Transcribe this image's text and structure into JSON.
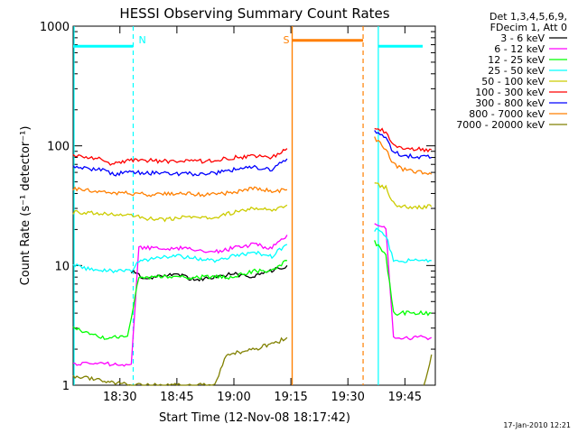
{
  "chart_data": {
    "type": "line",
    "title": "HESSI Observing Summary Count Rates",
    "xlabel": "Start Time (12-Nov-08 18:17:42)",
    "ylabel": "Count Rate (s⁻¹ detector⁻¹)",
    "y_scale": "log",
    "ylim": [
      1,
      1000
    ],
    "xlim": [
      "18:17:42",
      "19:53:00"
    ],
    "x_ticks": [
      "18:30",
      "18:45",
      "19:00",
      "19:15",
      "19:30",
      "19:45"
    ],
    "y_ticks": [
      "1",
      "10",
      "100",
      "1000"
    ],
    "grid": false,
    "legend_position": "right",
    "legend_header": [
      "Det 1,3,4,5,6,9,",
      "FDecim 1, Att 0"
    ],
    "markers": [
      {
        "label": "N",
        "type": "night_start",
        "time": "18:33:30",
        "color": "#00ffff"
      },
      {
        "label": "N",
        "type": "night_end",
        "time": "19:38:00",
        "color": "#00ffff"
      },
      {
        "label": "S",
        "type": "saa_start",
        "time": "19:15:20",
        "color": "#ff7f00"
      },
      {
        "label": "S",
        "type": "saa_end",
        "time": "19:34:00",
        "color": "#ff7f00"
      }
    ],
    "series": [
      {
        "name": "3 - 6 keV",
        "color": "#000000",
        "x": [
          "18:33",
          "18:36",
          "18:40",
          "18:45",
          "18:50",
          "18:55",
          "19:00",
          "19:05",
          "19:10",
          "19:14"
        ],
        "values": [
          9.0,
          8.0,
          8.0,
          8.5,
          7.5,
          8.0,
          8.5,
          8.0,
          9.0,
          10.0
        ]
      },
      {
        "name": "6 - 12 keV",
        "color": "#ff00ff",
        "x": [
          "18:17:42",
          "18:25",
          "18:33",
          "18:35",
          "18:45",
          "18:55",
          "19:00",
          "19:05",
          "19:10",
          "19:14",
          "19:37",
          "19:40",
          "19:42",
          "19:45",
          "19:52"
        ],
        "values": [
          1.5,
          1.5,
          1.5,
          14,
          14,
          13,
          14,
          15,
          14,
          18,
          23,
          20,
          2.5,
          2.5,
          2.5
        ]
      },
      {
        "name": "12 - 25 keV",
        "color": "#00ff00",
        "x": [
          "18:17:42",
          "18:25",
          "18:32",
          "18:35",
          "18:45",
          "18:55",
          "19:00",
          "19:05",
          "19:10",
          "19:14",
          "19:37",
          "19:40",
          "19:42",
          "19:45",
          "19:52"
        ],
        "values": [
          3.0,
          2.5,
          2.5,
          8,
          8,
          8,
          8,
          9,
          9,
          11,
          16,
          12,
          4,
          4,
          4
        ]
      },
      {
        "name": "25 - 50 keV",
        "color": "#00ffff",
        "x": [
          "18:17:42",
          "18:25",
          "18:33",
          "18:35",
          "18:45",
          "18:55",
          "19:00",
          "19:05",
          "19:10",
          "19:14",
          "19:37",
          "19:40",
          "19:42",
          "19:45",
          "19:52"
        ],
        "values": [
          10,
          9,
          9,
          11,
          12,
          11,
          12,
          13,
          12,
          15,
          20,
          18,
          11,
          11,
          11
        ]
      },
      {
        "name": "50 - 100 keV",
        "color": "#cccc00",
        "x": [
          "18:17:42",
          "18:25",
          "18:33",
          "18:40",
          "18:45",
          "18:55",
          "19:00",
          "19:05",
          "19:10",
          "19:14",
          "19:37",
          "19:40",
          "19:42",
          "19:45",
          "19:52"
        ],
        "values": [
          28,
          27,
          26,
          24,
          25,
          25,
          28,
          30,
          29,
          32,
          48,
          45,
          33,
          31,
          31
        ]
      },
      {
        "name": "100 - 300 keV",
        "color": "#ff0000",
        "x": [
          "18:17:42",
          "18:25",
          "18:28",
          "18:33",
          "18:40",
          "18:45",
          "18:55",
          "19:00",
          "19:05",
          "19:10",
          "19:14",
          "19:37",
          "19:40",
          "19:42",
          "19:45",
          "19:52"
        ],
        "values": [
          82,
          77,
          70,
          76,
          75,
          74,
          75,
          80,
          82,
          80,
          95,
          145,
          130,
          100,
          95,
          93
        ]
      },
      {
        "name": "300 - 800 keV",
        "color": "#0000ff",
        "x": [
          "18:17:42",
          "18:25",
          "18:28",
          "18:33",
          "18:40",
          "18:45",
          "18:55",
          "19:00",
          "19:05",
          "19:10",
          "19:14",
          "19:37",
          "19:40",
          "19:42",
          "19:45",
          "19:52"
        ],
        "values": [
          66,
          63,
          58,
          60,
          59,
          58,
          59,
          63,
          66,
          63,
          78,
          130,
          118,
          88,
          83,
          80
        ]
      },
      {
        "name": "800 - 7000 keV",
        "color": "#ff7f00",
        "x": [
          "18:17:42",
          "18:25",
          "18:33",
          "18:40",
          "18:45",
          "18:55",
          "19:00",
          "19:05",
          "19:10",
          "19:14",
          "19:37",
          "19:40",
          "19:42",
          "19:45",
          "19:52"
        ],
        "values": [
          44,
          41,
          40,
          39,
          40,
          39,
          41,
          44,
          42,
          43,
          115,
          95,
          70,
          63,
          58
        ]
      },
      {
        "name": "7000 - 20000 keV",
        "color": "#808000",
        "x": [
          "18:17:42",
          "18:25",
          "18:33",
          "18:45",
          "18:55",
          "18:58",
          "19:05",
          "19:10",
          "19:14",
          "19:50",
          "19:52"
        ],
        "values": [
          1.2,
          1.1,
          1.0,
          1.0,
          1.0,
          1.8,
          2.0,
          2.2,
          2.5,
          1.0,
          1.8
        ]
      }
    ],
    "saa_level": 760,
    "night_level": 680,
    "timestamp": "17-Jan-2010 12:21"
  }
}
